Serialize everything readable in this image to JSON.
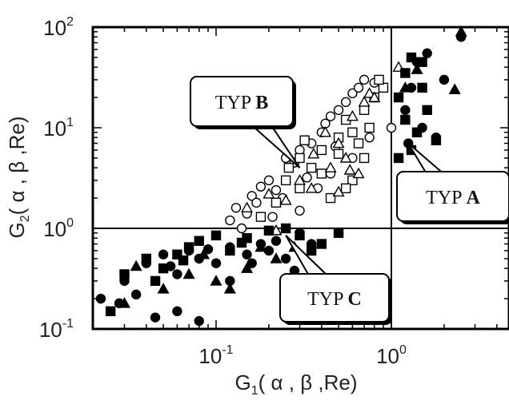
{
  "chart_data": {
    "type": "scatter",
    "xscale": "log",
    "yscale": "log",
    "xlim": [
      0.02,
      6
    ],
    "ylim": [
      0.1,
      100
    ],
    "xticks": [
      {
        "value": 0.1,
        "base": "10",
        "exp": "-1"
      },
      {
        "value": 1,
        "base": "10",
        "exp": "0"
      }
    ],
    "yticks": [
      {
        "value": 0.1,
        "base": "10",
        "exp": "-1"
      },
      {
        "value": 1,
        "base": "10",
        "exp": "0"
      },
      {
        "value": 10,
        "base": "10",
        "exp": "1"
      },
      {
        "value": 100,
        "base": "10",
        "exp": "2"
      }
    ],
    "xlabel": {
      "pre": "G",
      "sub": "1",
      "post": "( α , β ,Re)"
    },
    "ylabel": {
      "pre": "G",
      "sub": "2",
      "post": "( α , β ,Re)"
    },
    "divider_lines": {
      "x": 1,
      "y": 1
    },
    "annotations": [
      {
        "prefix": "TYP ",
        "letter": "B",
        "target": [
          0.3,
          4
        ]
      },
      {
        "prefix": "TYP ",
        "letter": "A",
        "target": [
          1.25,
          7
        ]
      },
      {
        "prefix": "TYP ",
        "letter": "C",
        "target": [
          0.25,
          0.85
        ]
      }
    ],
    "series": [
      {
        "marker": "open-circle",
        "points": [
          [
            0.13,
            1.6
          ],
          [
            0.15,
            1.4
          ],
          [
            0.16,
            2.1
          ],
          [
            0.18,
            2.6
          ],
          [
            0.2,
            3.0
          ],
          [
            0.22,
            2.4
          ],
          [
            0.25,
            5.0
          ],
          [
            0.28,
            4.5
          ],
          [
            0.3,
            6.0
          ],
          [
            0.35,
            7.0
          ],
          [
            0.4,
            9.0
          ],
          [
            0.42,
            11.0
          ],
          [
            0.45,
            13.0
          ],
          [
            0.5,
            15.0
          ],
          [
            0.55,
            18.0
          ],
          [
            0.6,
            22.0
          ],
          [
            0.65,
            25.0
          ],
          [
            0.7,
            30.0
          ],
          [
            0.8,
            28.0
          ],
          [
            0.9,
            25.0
          ],
          [
            1.0,
            10.0
          ],
          [
            0.12,
            1.2
          ],
          [
            0.14,
            1.0
          ],
          [
            0.17,
            1.8
          ],
          [
            0.24,
            2.0
          ],
          [
            0.3,
            1.5
          ],
          [
            0.38,
            2.5
          ],
          [
            0.45,
            3.5
          ],
          [
            0.6,
            5.0
          ],
          [
            0.75,
            8.0
          ],
          [
            0.25,
            11.0
          ],
          [
            0.21,
            1.3
          ],
          [
            0.33,
            3.2
          ],
          [
            0.48,
            6.5
          ]
        ]
      },
      {
        "marker": "open-square",
        "points": [
          [
            0.18,
            1.3
          ],
          [
            0.22,
            1.8
          ],
          [
            0.25,
            3.0
          ],
          [
            0.3,
            5.0
          ],
          [
            0.35,
            4.0
          ],
          [
            0.4,
            6.0
          ],
          [
            0.5,
            8.0
          ],
          [
            0.55,
            12.0
          ],
          [
            0.6,
            9.0
          ],
          [
            0.7,
            15.0
          ],
          [
            0.8,
            20.0
          ],
          [
            0.9,
            25.0
          ],
          [
            0.85,
            30.0
          ],
          [
            0.7,
            5.0
          ],
          [
            0.6,
            3.0
          ],
          [
            0.45,
            2.0
          ],
          [
            0.3,
            2.5
          ],
          [
            0.4,
            3.5
          ],
          [
            0.5,
            5.5
          ],
          [
            0.65,
            7.0
          ],
          [
            0.75,
            10.0
          ],
          [
            0.26,
            4.0
          ],
          [
            0.32,
            7.5
          ],
          [
            0.55,
            2.5
          ]
        ]
      },
      {
        "marker": "open-triangle",
        "points": [
          [
            0.15,
            1.6
          ],
          [
            0.2,
            2.2
          ],
          [
            0.25,
            1.9
          ],
          [
            0.3,
            3.0
          ],
          [
            0.35,
            2.5
          ],
          [
            0.45,
            4.0
          ],
          [
            0.5,
            7.0
          ],
          [
            0.55,
            5.0
          ],
          [
            0.6,
            13.0
          ],
          [
            0.7,
            18.0
          ],
          [
            0.75,
            22.0
          ],
          [
            0.8,
            20.0
          ],
          [
            1.1,
            40.0
          ],
          [
            0.65,
            3.5
          ],
          [
            0.5,
            2.3
          ],
          [
            0.42,
            9.0
          ],
          [
            0.58,
            3.8
          ],
          [
            0.36,
            5.5
          ],
          [
            0.22,
            0.95
          ]
        ]
      },
      {
        "marker": "filled-circle",
        "points": [
          [
            0.022,
            0.2
          ],
          [
            0.03,
            0.3
          ],
          [
            0.035,
            0.22
          ],
          [
            0.04,
            0.45
          ],
          [
            0.05,
            0.55
          ],
          [
            0.06,
            0.35
          ],
          [
            0.07,
            0.6
          ],
          [
            0.08,
            0.5
          ],
          [
            0.1,
            0.45
          ],
          [
            0.12,
            0.65
          ],
          [
            0.15,
            0.55
          ],
          [
            0.18,
            0.7
          ],
          [
            0.2,
            0.6
          ],
          [
            0.22,
            0.75
          ],
          [
            0.25,
            0.5
          ],
          [
            0.3,
            0.9
          ],
          [
            0.35,
            0.7
          ],
          [
            0.028,
            0.18
          ],
          [
            0.045,
            0.13
          ],
          [
            0.06,
            0.15
          ],
          [
            0.08,
            0.12
          ],
          [
            1.2,
            15.0
          ],
          [
            1.4,
            45.0
          ],
          [
            1.6,
            55.0
          ],
          [
            1.3,
            25.0
          ],
          [
            2.0,
            30.0
          ],
          [
            2.5,
            80.0
          ],
          [
            1.25,
            7.0
          ],
          [
            1.5,
            10.0
          ],
          [
            1.8,
            8.0
          ],
          [
            0.12,
            0.3
          ],
          [
            0.16,
            0.45
          ],
          [
            0.055,
            0.42
          ],
          [
            0.09,
            0.62
          ],
          [
            0.28,
            0.38
          ]
        ]
      },
      {
        "marker": "filled-square",
        "points": [
          [
            0.025,
            0.15
          ],
          [
            0.03,
            0.35
          ],
          [
            0.04,
            0.5
          ],
          [
            0.05,
            0.4
          ],
          [
            0.06,
            0.55
          ],
          [
            0.07,
            0.65
          ],
          [
            0.08,
            0.75
          ],
          [
            0.1,
            0.85
          ],
          [
            0.12,
            0.6
          ],
          [
            0.15,
            0.8
          ],
          [
            0.2,
            0.95
          ],
          [
            0.25,
            1.0
          ],
          [
            0.3,
            0.85
          ],
          [
            0.4,
            0.7
          ],
          [
            0.5,
            0.9
          ],
          [
            1.1,
            20.0
          ],
          [
            1.2,
            35.0
          ],
          [
            1.3,
            50.0
          ],
          [
            1.5,
            45.0
          ],
          [
            1.2,
            12.0
          ],
          [
            1.4,
            9.0
          ],
          [
            1.6,
            15.0
          ],
          [
            1.1,
            5.0
          ],
          [
            1.3,
            6.0
          ],
          [
            1.5,
            25.0
          ],
          [
            1.8,
            7.5
          ],
          [
            0.065,
            0.48
          ],
          [
            0.14,
            0.72
          ],
          [
            0.045,
            0.3
          ],
          [
            0.35,
            0.6
          ]
        ]
      },
      {
        "marker": "filled-triangle",
        "points": [
          [
            0.03,
            0.18
          ],
          [
            0.05,
            0.25
          ],
          [
            0.07,
            0.35
          ],
          [
            0.1,
            0.3
          ],
          [
            0.12,
            0.25
          ],
          [
            0.15,
            0.4
          ],
          [
            0.18,
            0.65
          ],
          [
            0.22,
            0.5
          ],
          [
            0.28,
            0.65
          ],
          [
            1.2,
            25.0
          ],
          [
            1.4,
            38.0
          ],
          [
            2.3,
            24.0
          ],
          [
            2.5,
            90.0
          ],
          [
            0.085,
            0.55
          ],
          [
            0.035,
            0.42
          ]
        ]
      }
    ]
  }
}
